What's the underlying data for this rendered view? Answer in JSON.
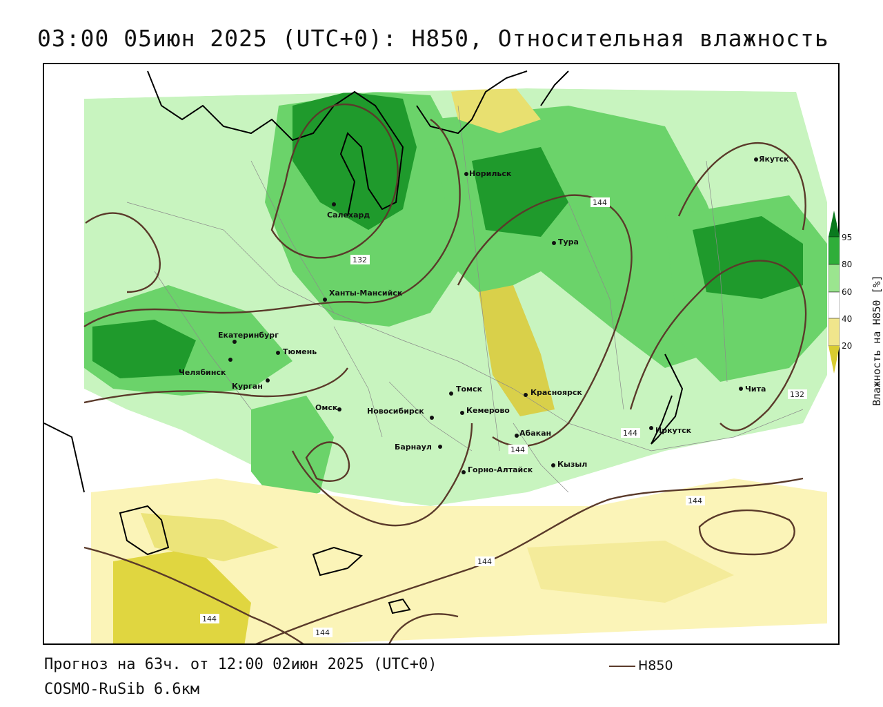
{
  "title": "03:00 05июн 2025 (UTC+0): H850, Относительная влажность",
  "footer": {
    "forecast": "Прогноз на 63ч. от 12:00 02июн 2025 (UTC+0)",
    "model": "COSMO-RuSib 6.6км"
  },
  "legend": {
    "line_label": "H850",
    "line_color": "#5a3a2a"
  },
  "colorbar": {
    "title": "Влажность на H850 [%]",
    "ticks": [
      "95",
      "80",
      "60",
      "40",
      "20"
    ],
    "colors": {
      "95": "#0a7a1e",
      "80": "#2fae3a",
      "60": "#9be58f",
      "40": "#ffffff",
      "20": "#f0e68c",
      "0": "#d8cc30"
    }
  },
  "contour_labels": [
    "132",
    "144",
    "144",
    "144",
    "144",
    "144",
    "144",
    "132",
    "144"
  ],
  "cities": [
    "Салехард",
    "Норильск",
    "Якутск",
    "Тура",
    "Ханты-Мансийск",
    "Екатеринбург",
    "Тюмень",
    "Челябинск",
    "Курган",
    "Омск",
    "Новосибирск",
    "Томск",
    "Кемерово",
    "Красноярск",
    "Абакан",
    "Барнаул",
    "Горно-Алтайск",
    "Кызыл",
    "Иркутск",
    "Чита"
  ]
}
